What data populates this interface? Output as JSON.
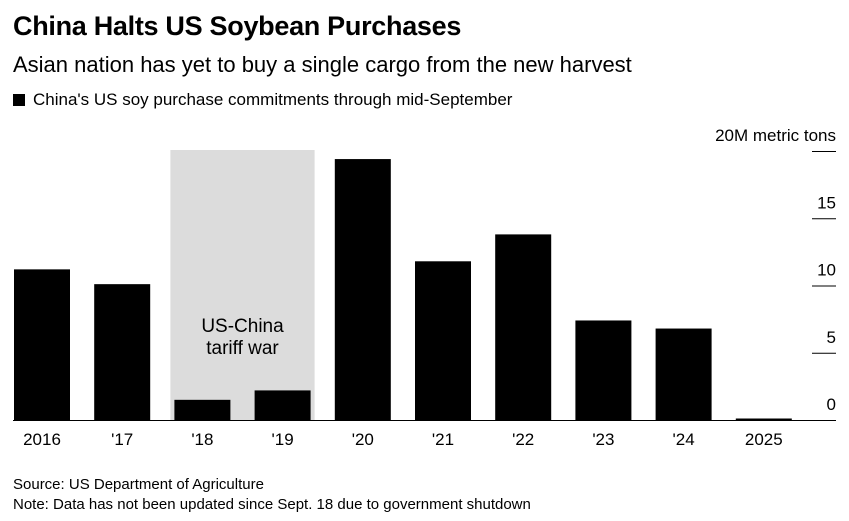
{
  "header": {
    "title": "China Halts US Soybean Purchases",
    "subtitle": "Asian nation has yet to buy a single cargo from the new harvest",
    "legend_label": "China's US soy purchase commitments through mid-September"
  },
  "footer": {
    "source": "Source: US Department of Agriculture",
    "note": "Note: Data has not been updated since Sept. 18 due to government shutdown"
  },
  "colors": {
    "bar": "#000000",
    "shade": "#dcdcdc",
    "axis": "#000000",
    "text": "#000000"
  },
  "chart_data": {
    "type": "bar",
    "categories": [
      "2016",
      "'17",
      "'18",
      "'19",
      "'20",
      "'21",
      "'22",
      "'23",
      "'24",
      "2025"
    ],
    "series": [
      {
        "name": "China's US soy purchase commitments through mid-September",
        "values": [
          11.2,
          10.1,
          1.5,
          2.2,
          19.4,
          11.8,
          13.8,
          7.4,
          6.8,
          0
        ]
      }
    ],
    "ylabel_unit": "20M metric tons",
    "yticks": [
      0,
      5,
      10,
      15,
      20
    ],
    "ytick_labels": [
      "0",
      "5",
      "10",
      "15",
      "20M metric tons"
    ],
    "ylim": [
      0,
      20
    ],
    "y_axis_position": "right",
    "grid": false,
    "legend_position": "top-left",
    "annotation": {
      "lines": [
        "US-China",
        "tariff war"
      ],
      "span": [
        "'18",
        "'19"
      ]
    }
  }
}
